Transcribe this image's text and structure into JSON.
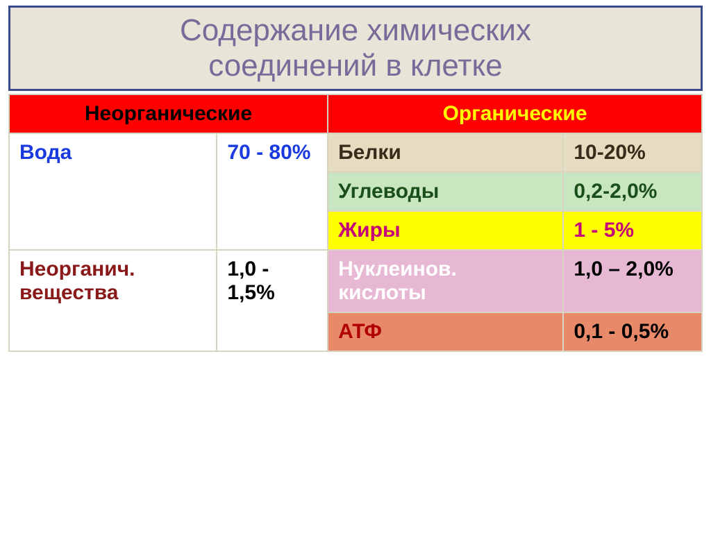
{
  "title_line1": "Содержание химических",
  "title_line2": "соединений в клетке",
  "title_bg": "#e8e4d8",
  "title_border": "#3a4a8a",
  "title_color": "#7a6a9a",
  "title_fontsize": 44,
  "cell_border": "#d8d4c4",
  "cell_fontsize": 30,
  "headers": {
    "inorganic": {
      "text": "Неорганические",
      "bg": "#ff0000",
      "color": "#000000"
    },
    "organic": {
      "text": "Органические",
      "bg": "#ff0000",
      "color": "#ffff00"
    }
  },
  "col_widths_pct": [
    30,
    16,
    34,
    20
  ],
  "rows": [
    {
      "left_label": {
        "text": "Вода",
        "bg": "#ffffff",
        "color": "#1a3adf",
        "rowspan": 3
      },
      "left_value": {
        "text": "70 - 80%",
        "bg": "#ffffff",
        "color": "#1a3adf",
        "rowspan": 3
      },
      "right_label": {
        "text": "Белки",
        "bg": "#e6ddc0",
        "color": "#3a2b1a"
      },
      "right_value": {
        "text": "10-20%",
        "bg": "#e6ddc0",
        "color": "#3a2b1a"
      }
    },
    {
      "right_label": {
        "text": "Углеводы",
        "bg": "#c8e6c0",
        "color": "#1a4f1a"
      },
      "right_value": {
        "text": "0,2-2,0%",
        "bg": "#c8e6c0",
        "color": "#1a4f1a"
      }
    },
    {
      "right_label": {
        "text": "Жиры",
        "bg": "#ffff00",
        "color": "#c4007a"
      },
      "right_value": {
        "text": "1 - 5%",
        "bg": "#ffff00",
        "color": "#c4007a"
      }
    },
    {
      "left_label": {
        "lines": [
          "Неорганич.",
          "вещества"
        ],
        "bg": "#ffffff",
        "color": "#8a1a1a",
        "rowspan": 2
      },
      "left_value": {
        "text": "1,0 - 1,5%",
        "bg": "#ffffff",
        "color": "#000000",
        "rowspan": 2
      },
      "right_label": {
        "lines": [
          "Нуклеинов.",
          "кислоты"
        ],
        "bg": "#e6b8d4",
        "color": "#ffffff"
      },
      "right_value": {
        "text": "1,0 – 2,0%",
        "bg": "#e6b8d4",
        "color": "#000000"
      }
    },
    {
      "right_label": {
        "text": "АТФ",
        "bg": "#e88a6a",
        "color": "#b00000"
      },
      "right_value": {
        "text": "0,1 - 0,5%",
        "bg": "#e88a6a",
        "color": "#000000"
      }
    }
  ]
}
